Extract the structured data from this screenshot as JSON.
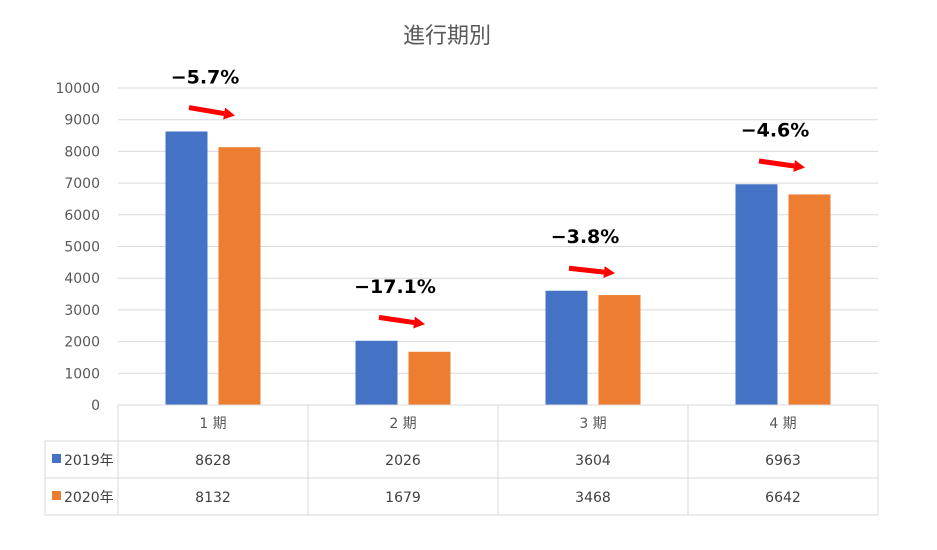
{
  "chart_data": {
    "type": "bar",
    "title": "進行期別",
    "categories": [
      "1 期",
      "2 期",
      "3 期",
      "4 期"
    ],
    "series": [
      {
        "name": "2019年",
        "values": [
          8628,
          2026,
          3604,
          6963
        ],
        "color": "#4472C4"
      },
      {
        "name": "2020年",
        "values": [
          8132,
          1679,
          3468,
          6642
        ],
        "color": "#ED7D31"
      }
    ],
    "ylim": [
      0,
      10000
    ],
    "yticks": [
      0,
      1000,
      2000,
      3000,
      4000,
      5000,
      6000,
      7000,
      8000,
      9000,
      10000
    ],
    "grid": true,
    "legend": "data-table",
    "data_table": true,
    "annotations": [
      {
        "category": "1 期",
        "text": "−5.7%"
      },
      {
        "category": "2 期",
        "text": "−17.1%"
      },
      {
        "category": "3 期",
        "text": "−3.8%"
      },
      {
        "category": "4 期",
        "text": "−4.6%"
      }
    ],
    "arrow_color": "#FF0000"
  }
}
